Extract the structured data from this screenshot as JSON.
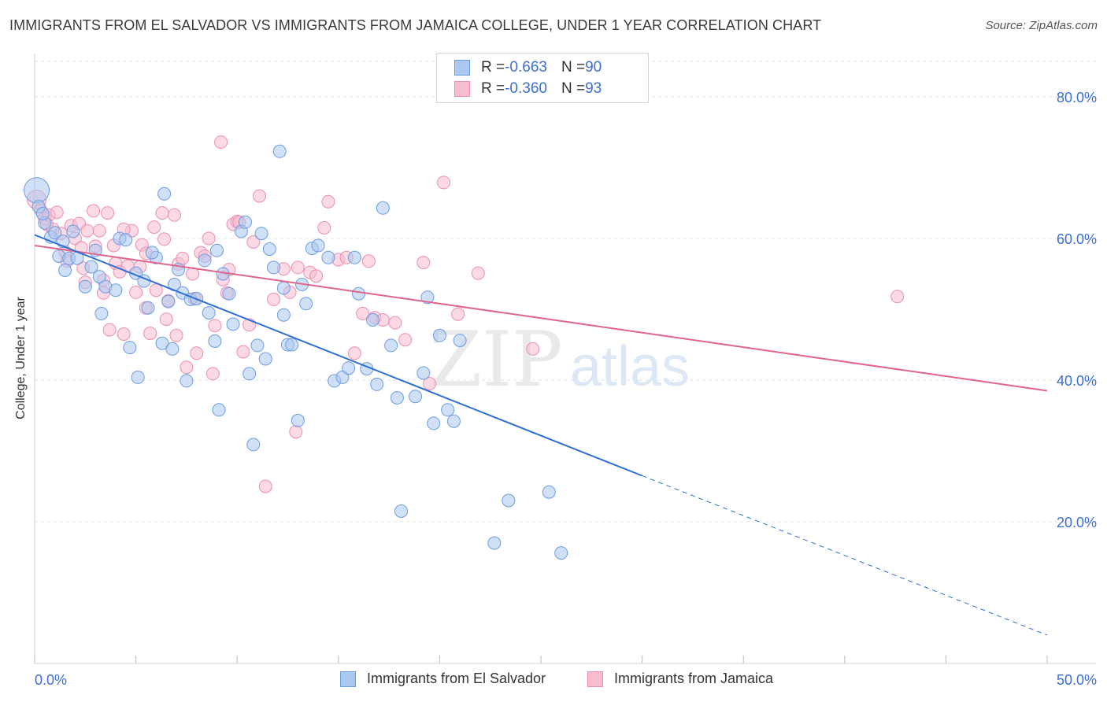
{
  "title": "IMMIGRANTS FROM EL SALVADOR VS IMMIGRANTS FROM JAMAICA COLLEGE, UNDER 1 YEAR CORRELATION CHART",
  "source": "Source: ZipAtlas.com",
  "watermark": {
    "zip": "ZIP",
    "atlas": "atlas"
  },
  "legend": {
    "rows": [
      {
        "r_label": "R = ",
        "r_value": "-0.663",
        "n_label": "N = ",
        "n_value": "90"
      },
      {
        "r_label": "R = ",
        "r_value": "-0.360",
        "n_label": "N = ",
        "n_value": "93"
      }
    ]
  },
  "bottom_legend": [
    "Immigrants from El Salvador",
    "Immigrants from Jamaica"
  ],
  "colors": {
    "blue_fill": "#aac8f0",
    "blue_stroke": "#6d9ce0",
    "blue_line": "#2e6fd4",
    "pink_fill": "#f7bcd0",
    "pink_stroke": "#ea8fb0",
    "pink_line": "#e0648e",
    "tick_label": "#3b6fd4",
    "grid": "#e3e3e3"
  },
  "chart_data": {
    "type": "scatter",
    "title": "IMMIGRANTS FROM EL SALVADOR VS IMMIGRANTS FROM JAMAICA COLLEGE, UNDER 1 YEAR CORRELATION CHART",
    "xlabel": "",
    "ylabel": "College, Under 1 year",
    "xlim": [
      0,
      50
    ],
    "ylim": [
      0,
      85
    ],
    "x_tick_labels": [
      "0.0%",
      "50.0%"
    ],
    "y_ticks": [
      20,
      40,
      60,
      80
    ],
    "y_tick_labels": [
      "20.0%",
      "40.0%",
      "60.0%",
      "80.0%"
    ],
    "grid": true,
    "legend_position": "top-center",
    "series": [
      {
        "name": "Immigrants from El Salvador",
        "r": -0.663,
        "n": 90,
        "trend": {
          "x0": 0,
          "y0": 60.5,
          "x1": 30,
          "y1": 26.5,
          "dashed_to_x": 50,
          "dashed_to_y": 4.0
        },
        "points": [
          [
            0.1,
            66.8
          ],
          [
            0.2,
            64.5
          ],
          [
            0.5,
            62.2
          ],
          [
            0.8,
            60.2
          ],
          [
            1.0,
            60.8
          ],
          [
            1.2,
            57.5
          ],
          [
            1.5,
            55.5
          ],
          [
            1.7,
            57.2
          ],
          [
            1.9,
            61.0
          ],
          [
            2.5,
            53.2
          ],
          [
            2.8,
            56.0
          ],
          [
            3.2,
            54.6
          ],
          [
            3.3,
            49.4
          ],
          [
            3.5,
            53.2
          ],
          [
            4.0,
            52.7
          ],
          [
            4.2,
            60.0
          ],
          [
            4.5,
            59.8
          ],
          [
            4.7,
            44.6
          ],
          [
            5.0,
            55.1
          ],
          [
            5.1,
            40.4
          ],
          [
            5.4,
            54.0
          ],
          [
            5.6,
            50.2
          ],
          [
            6.0,
            57.3
          ],
          [
            6.3,
            45.2
          ],
          [
            6.4,
            66.3
          ],
          [
            6.6,
            51.1
          ],
          [
            6.8,
            44.4
          ],
          [
            7.1,
            55.6
          ],
          [
            7.3,
            52.3
          ],
          [
            7.5,
            39.9
          ],
          [
            7.7,
            51.4
          ],
          [
            8.0,
            51.5
          ],
          [
            8.4,
            56.9
          ],
          [
            8.6,
            49.5
          ],
          [
            8.9,
            45.5
          ],
          [
            9.1,
            35.8
          ],
          [
            9.3,
            55.0
          ],
          [
            9.6,
            52.2
          ],
          [
            9.8,
            47.9
          ],
          [
            10.2,
            61.0
          ],
          [
            10.4,
            62.3
          ],
          [
            10.6,
            40.9
          ],
          [
            10.8,
            30.9
          ],
          [
            11.0,
            44.9
          ],
          [
            11.4,
            43.0
          ],
          [
            11.6,
            58.5
          ],
          [
            11.8,
            55.9
          ],
          [
            12.1,
            72.3
          ],
          [
            12.3,
            49.2
          ],
          [
            12.5,
            45.0
          ],
          [
            12.7,
            45.0
          ],
          [
            13.0,
            34.3
          ],
          [
            13.2,
            53.5
          ],
          [
            13.4,
            50.8
          ],
          [
            13.7,
            58.6
          ],
          [
            14.0,
            59.0
          ],
          [
            14.5,
            57.3
          ],
          [
            14.8,
            39.9
          ],
          [
            15.2,
            40.4
          ],
          [
            15.5,
            41.7
          ],
          [
            15.8,
            57.3
          ],
          [
            16.0,
            52.2
          ],
          [
            16.4,
            41.6
          ],
          [
            16.7,
            48.5
          ],
          [
            16.9,
            39.4
          ],
          [
            17.2,
            64.3
          ],
          [
            17.6,
            44.9
          ],
          [
            17.9,
            37.5
          ],
          [
            18.1,
            21.5
          ],
          [
            18.8,
            37.7
          ],
          [
            19.2,
            41.0
          ],
          [
            19.4,
            51.7
          ],
          [
            19.7,
            33.9
          ],
          [
            20.0,
            46.3
          ],
          [
            20.4,
            35.8
          ],
          [
            20.7,
            34.2
          ],
          [
            21.0,
            45.6
          ],
          [
            22.7,
            17.0
          ],
          [
            23.4,
            23.0
          ],
          [
            25.4,
            24.2
          ],
          [
            26.0,
            15.6
          ],
          [
            12.3,
            53.0
          ],
          [
            9.0,
            58.3
          ],
          [
            3.0,
            58.3
          ],
          [
            2.1,
            57.2
          ],
          [
            6.9,
            53.5
          ],
          [
            11.2,
            60.7
          ],
          [
            5.8,
            58.0
          ],
          [
            0.4,
            63.5
          ],
          [
            1.4,
            59.6
          ]
        ]
      },
      {
        "name": "Immigrants from Jamaica",
        "r": -0.36,
        "n": 93,
        "trend": {
          "x0": 0,
          "y0": 59.0,
          "x1": 50,
          "y1": 38.5
        },
        "points": [
          [
            0.1,
            65.5
          ],
          [
            0.3,
            64.0
          ],
          [
            0.5,
            62.8
          ],
          [
            0.7,
            63.3
          ],
          [
            0.9,
            61.3
          ],
          [
            1.1,
            63.7
          ],
          [
            1.3,
            60.7
          ],
          [
            1.5,
            58.1
          ],
          [
            1.8,
            61.8
          ],
          [
            2.0,
            60.0
          ],
          [
            2.2,
            62.1
          ],
          [
            2.4,
            55.8
          ],
          [
            2.5,
            53.8
          ],
          [
            2.6,
            61.1
          ],
          [
            2.9,
            63.9
          ],
          [
            3.0,
            58.9
          ],
          [
            3.2,
            61.1
          ],
          [
            3.4,
            54.1
          ],
          [
            3.6,
            63.6
          ],
          [
            3.9,
            59.0
          ],
          [
            4.0,
            56.5
          ],
          [
            4.2,
            55.3
          ],
          [
            4.4,
            46.5
          ],
          [
            4.6,
            56.1
          ],
          [
            4.8,
            61.1
          ],
          [
            5.0,
            52.4
          ],
          [
            5.2,
            56.0
          ],
          [
            5.3,
            59.1
          ],
          [
            5.5,
            50.2
          ],
          [
            5.7,
            46.6
          ],
          [
            5.9,
            61.6
          ],
          [
            6.0,
            52.7
          ],
          [
            6.3,
            63.6
          ],
          [
            6.4,
            59.9
          ],
          [
            6.6,
            51.2
          ],
          [
            6.9,
            63.3
          ],
          [
            7.1,
            56.4
          ],
          [
            7.3,
            57.2
          ],
          [
            7.5,
            41.8
          ],
          [
            7.8,
            55.0
          ],
          [
            8.0,
            43.8
          ],
          [
            8.2,
            58.0
          ],
          [
            8.4,
            57.5
          ],
          [
            8.6,
            60.0
          ],
          [
            8.8,
            40.9
          ],
          [
            8.9,
            47.7
          ],
          [
            9.2,
            73.6
          ],
          [
            9.5,
            52.3
          ],
          [
            9.6,
            55.6
          ],
          [
            9.8,
            62.0
          ],
          [
            10.0,
            62.4
          ],
          [
            10.3,
            44.0
          ],
          [
            10.6,
            47.8
          ],
          [
            10.8,
            59.5
          ],
          [
            11.1,
            66.0
          ],
          [
            11.4,
            25.0
          ],
          [
            11.8,
            51.4
          ],
          [
            12.3,
            55.7
          ],
          [
            12.9,
            32.7
          ],
          [
            13.0,
            55.9
          ],
          [
            13.6,
            55.2
          ],
          [
            13.9,
            54.7
          ],
          [
            14.3,
            61.5
          ],
          [
            14.5,
            65.2
          ],
          [
            15.0,
            57.0
          ],
          [
            15.4,
            57.3
          ],
          [
            15.8,
            43.8
          ],
          [
            16.2,
            49.4
          ],
          [
            16.5,
            56.8
          ],
          [
            16.8,
            48.8
          ],
          [
            17.2,
            48.5
          ],
          [
            17.8,
            48.1
          ],
          [
            18.3,
            45.7
          ],
          [
            19.2,
            56.6
          ],
          [
            19.5,
            39.5
          ],
          [
            20.2,
            67.9
          ],
          [
            20.9,
            49.3
          ],
          [
            21.9,
            55.1
          ],
          [
            24.6,
            44.4
          ],
          [
            42.6,
            51.8
          ],
          [
            7.0,
            46.3
          ],
          [
            3.7,
            47.1
          ],
          [
            9.3,
            54.2
          ],
          [
            5.5,
            57.9
          ],
          [
            6.5,
            48.6
          ],
          [
            2.3,
            58.7
          ],
          [
            1.6,
            56.8
          ],
          [
            0.6,
            62.0
          ],
          [
            10.1,
            62.3
          ],
          [
            4.4,
            61.3
          ],
          [
            7.9,
            51.5
          ],
          [
            12.6,
            52.4
          ],
          [
            3.4,
            52.3
          ]
        ]
      }
    ]
  }
}
